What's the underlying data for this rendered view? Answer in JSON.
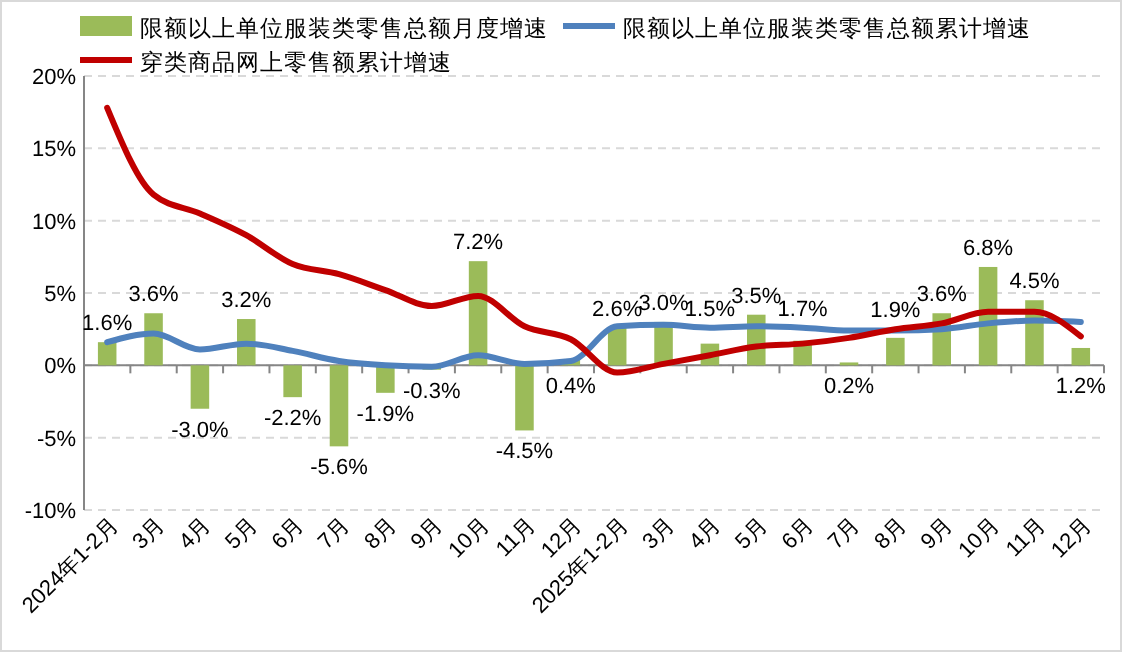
{
  "chart_data": {
    "type": "bar",
    "categories": [
      "2024年1-2月",
      "3月",
      "4月",
      "5月",
      "6月",
      "7月",
      "8月",
      "9月",
      "10月",
      "11月",
      "12月",
      "2025年1-2月",
      "3月",
      "4月",
      "5月",
      "6月",
      "7月",
      "8月",
      "9月",
      "10月",
      "11月",
      "12月"
    ],
    "series": [
      {
        "name": "限额以上单位服装类零售总额月度增速",
        "color": "#9bbb59",
        "values": [
          1.6,
          3.6,
          -3.0,
          3.2,
          -2.2,
          -5.6,
          -1.9,
          -0.3,
          7.2,
          -4.5,
          0.4,
          2.6,
          3.0,
          1.5,
          3.5,
          1.7,
          0.2,
          1.9,
          3.6,
          6.8,
          4.5,
          1.2
        ],
        "value_labels": [
          "1.6%",
          "3.6%",
          "-3.0%",
          "3.2%",
          "-2.2%",
          "-5.6%",
          "-1.9%",
          "-0.3%",
          "7.2%",
          "-4.5%",
          "0.4%",
          "2.6%",
          "3.0%",
          "1.5%",
          "3.5%",
          "1.7%",
          "0.2%",
          "1.9%",
          "3.6%",
          "6.8%",
          "4.5%",
          "1.2%"
        ]
      },
      {
        "name": "限额以上单位服装类零售总额累计增速",
        "type": "line",
        "color": "#4f81bd",
        "values": [
          1.6,
          2.2,
          1.1,
          1.5,
          1.0,
          0.3,
          0.0,
          -0.1,
          0.7,
          0.1,
          0.3,
          2.7,
          2.8,
          2.6,
          2.7,
          2.6,
          2.4,
          2.4,
          2.5,
          2.9,
          3.1,
          3.0
        ]
      },
      {
        "name": "穿类商品网上零售额累计增速",
        "type": "line",
        "color": "#c00000",
        "values": [
          17.8,
          11.8,
          10.5,
          9.0,
          7.0,
          6.3,
          5.2,
          4.1,
          4.8,
          2.7,
          1.8,
          -0.5,
          0.1,
          0.7,
          1.3,
          1.5,
          1.9,
          2.5,
          2.9,
          3.7,
          3.7,
          2.0
        ]
      }
    ],
    "ylim": [
      -10,
      20
    ],
    "yticks": [
      {
        "value": -10,
        "label": "-10%"
      },
      {
        "value": -5,
        "label": "-5%"
      },
      {
        "value": 0,
        "label": "0%"
      },
      {
        "value": 5,
        "label": "5%"
      },
      {
        "value": 10,
        "label": "10%"
      },
      {
        "value": 15,
        "label": "15%"
      },
      {
        "value": 20,
        "label": "20%"
      }
    ],
    "grid": "y",
    "legend": "top",
    "marker": "none"
  }
}
